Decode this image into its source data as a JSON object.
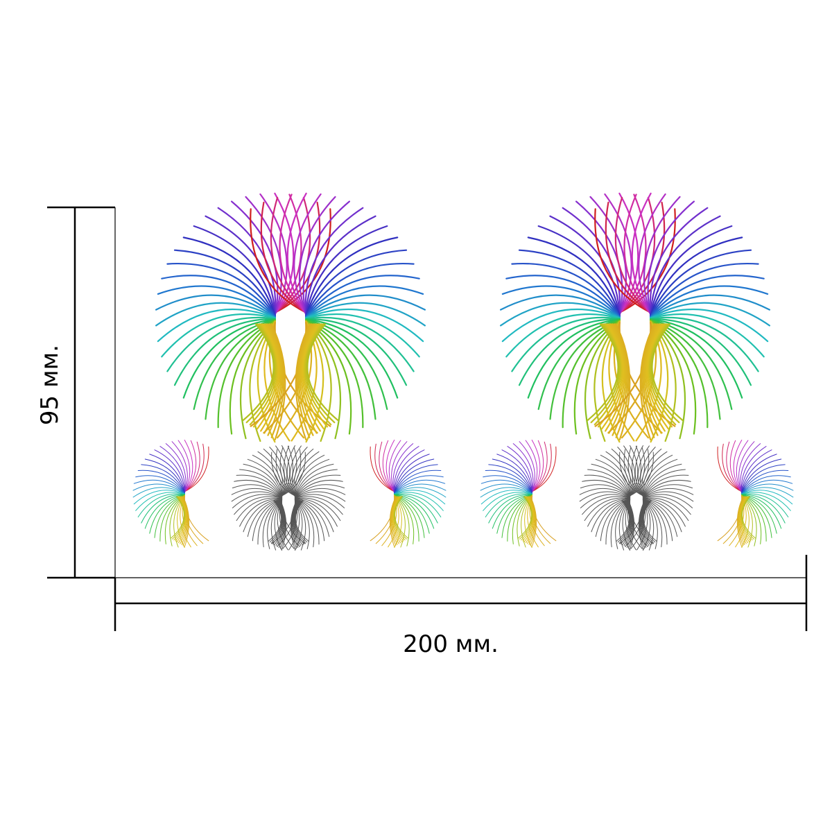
{
  "dimensions": {
    "height_label": "95 мм.",
    "width_label": "200 мм."
  },
  "decal_sheet": {
    "large_motifs": [
      {
        "style": "rainbow",
        "shape": "pair-of-wings"
      },
      {
        "style": "rainbow",
        "shape": "pair-of-wings"
      }
    ],
    "small_motifs": [
      {
        "style": "rainbow",
        "shape": "single-wing-left"
      },
      {
        "style": "gray",
        "shape": "pair-of-wings"
      },
      {
        "style": "rainbow",
        "shape": "single-wing-right"
      },
      {
        "style": "rainbow",
        "shape": "single-wing-left"
      },
      {
        "style": "gray",
        "shape": "pair-of-wings"
      },
      {
        "style": "rainbow",
        "shape": "single-wing-right"
      }
    ]
  },
  "colors": {
    "rainbow_stops": [
      "#d8a020",
      "#e0c020",
      "#60c020",
      "#20c060",
      "#20c0c0",
      "#2070d0",
      "#3030c0",
      "#8030d0",
      "#d030c0",
      "#d02020"
    ],
    "gray": "#555555",
    "dimension_line": "#000000"
  }
}
